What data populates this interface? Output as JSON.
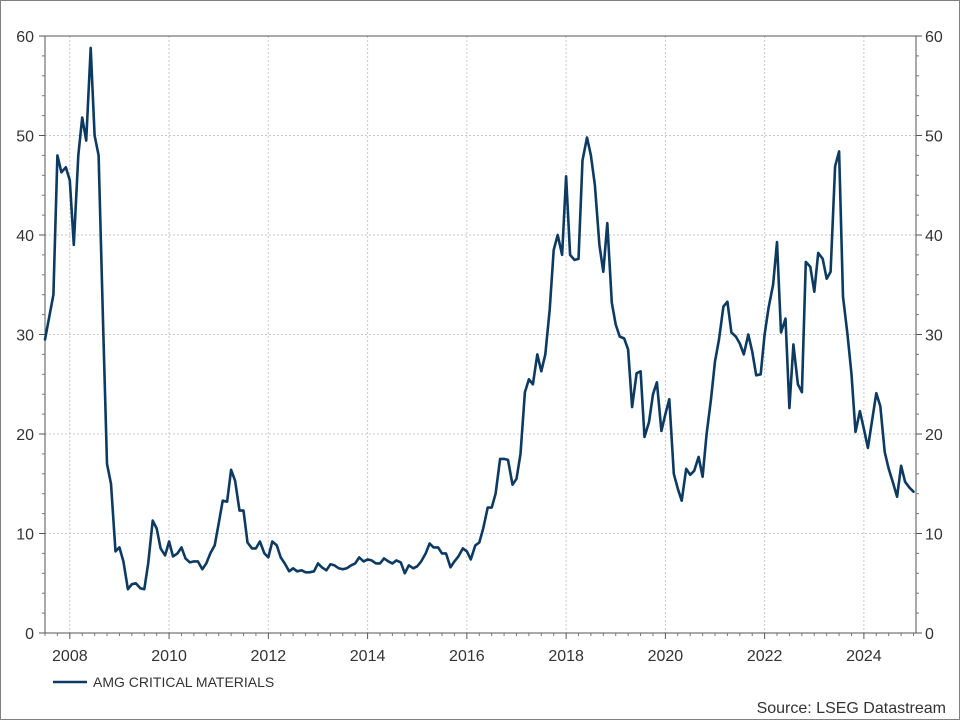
{
  "chart_data": {
    "type": "line",
    "title": "",
    "xlabel": "",
    "ylabel": "",
    "xlim": [
      2007.5,
      2025.05
    ],
    "ylim": [
      0,
      60
    ],
    "y_ticks": [
      0,
      10,
      20,
      30,
      40,
      50,
      60
    ],
    "x_ticks": [
      2008,
      2010,
      2012,
      2014,
      2016,
      2018,
      2020,
      2022,
      2024
    ],
    "grid": true,
    "y_axis_both_sides": true,
    "legend_position": "bottom-left",
    "source": "Source: LSEG Datastream",
    "series": [
      {
        "name": "AMG CRITICAL MATERIALS",
        "color": "#0d3a63",
        "x": [
          2007.5,
          2007.67,
          2007.75,
          2007.83,
          2007.92,
          2008.0,
          2008.08,
          2008.17,
          2008.25,
          2008.33,
          2008.42,
          2008.5,
          2008.58,
          2008.67,
          2008.75,
          2008.83,
          2008.92,
          2009.0,
          2009.08,
          2009.17,
          2009.25,
          2009.33,
          2009.42,
          2009.5,
          2009.58,
          2009.67,
          2009.75,
          2009.83,
          2009.92,
          2010.0,
          2010.08,
          2010.17,
          2010.25,
          2010.33,
          2010.42,
          2010.5,
          2010.58,
          2010.67,
          2010.75,
          2010.83,
          2010.92,
          2011.0,
          2011.08,
          2011.17,
          2011.25,
          2011.33,
          2011.42,
          2011.5,
          2011.58,
          2011.67,
          2011.75,
          2011.83,
          2011.92,
          2012.0,
          2012.08,
          2012.17,
          2012.25,
          2012.33,
          2012.42,
          2012.5,
          2012.58,
          2012.67,
          2012.75,
          2012.83,
          2012.92,
          2013.0,
          2013.08,
          2013.17,
          2013.25,
          2013.33,
          2013.42,
          2013.5,
          2013.58,
          2013.67,
          2013.75,
          2013.83,
          2013.92,
          2014.0,
          2014.08,
          2014.17,
          2014.25,
          2014.33,
          2014.42,
          2014.5,
          2014.58,
          2014.67,
          2014.75,
          2014.83,
          2014.92,
          2015.0,
          2015.08,
          2015.17,
          2015.25,
          2015.33,
          2015.42,
          2015.5,
          2015.58,
          2015.67,
          2015.75,
          2015.83,
          2015.92,
          2016.0,
          2016.08,
          2016.17,
          2016.25,
          2016.33,
          2016.42,
          2016.5,
          2016.58,
          2016.67,
          2016.75,
          2016.83,
          2016.92,
          2017.0,
          2017.08,
          2017.17,
          2017.25,
          2017.33,
          2017.42,
          2017.5,
          2017.58,
          2017.67,
          2017.75,
          2017.83,
          2017.92,
          2018.0,
          2018.08,
          2018.17,
          2018.25,
          2018.33,
          2018.42,
          2018.5,
          2018.58,
          2018.67,
          2018.75,
          2018.83,
          2018.92,
          2019.0,
          2019.08,
          2019.17,
          2019.25,
          2019.33,
          2019.42,
          2019.5,
          2019.58,
          2019.67,
          2019.75,
          2019.83,
          2019.92,
          2020.0,
          2020.08,
          2020.17,
          2020.25,
          2020.33,
          2020.42,
          2020.5,
          2020.58,
          2020.67,
          2020.75,
          2020.83,
          2020.92,
          2021.0,
          2021.08,
          2021.17,
          2021.25,
          2021.33,
          2021.42,
          2021.5,
          2021.58,
          2021.67,
          2021.75,
          2021.83,
          2021.92,
          2022.0,
          2022.08,
          2022.17,
          2022.25,
          2022.33,
          2022.42,
          2022.5,
          2022.58,
          2022.67,
          2022.75,
          2022.83,
          2022.92,
          2023.0,
          2023.08,
          2023.17,
          2023.25,
          2023.33,
          2023.42,
          2023.5,
          2023.58,
          2023.67,
          2023.75,
          2023.83,
          2023.92,
          2024.0,
          2024.08,
          2024.17,
          2024.25,
          2024.33,
          2024.42,
          2024.5,
          2024.58,
          2024.67,
          2024.75,
          2024.83,
          2024.92,
          2025.0
        ],
        "values": [
          29.5,
          34.0,
          48.0,
          46.3,
          46.8,
          45.5,
          39.0,
          48.0,
          51.8,
          49.5,
          58.8,
          50.0,
          48.0,
          31.0,
          17.0,
          15.0,
          8.2,
          8.6,
          7.2,
          4.4,
          4.9,
          5.0,
          4.5,
          4.4,
          7.0,
          11.3,
          10.5,
          8.5,
          7.8,
          9.2,
          7.7,
          8.0,
          8.6,
          7.5,
          7.1,
          7.2,
          7.2,
          6.4,
          7.0,
          8.0,
          8.8,
          11.0,
          13.3,
          13.2,
          16.4,
          15.3,
          12.3,
          12.3,
          9.1,
          8.5,
          8.5,
          9.2,
          8.0,
          7.6,
          9.2,
          8.8,
          7.6,
          7.0,
          6.2,
          6.5,
          6.2,
          6.3,
          6.1,
          6.1,
          6.2,
          7.0,
          6.6,
          6.3,
          6.9,
          6.8,
          6.5,
          6.4,
          6.5,
          6.8,
          7.0,
          7.6,
          7.2,
          7.4,
          7.3,
          7.0,
          7.0,
          7.5,
          7.2,
          7.0,
          7.3,
          7.1,
          6.0,
          6.8,
          6.5,
          6.7,
          7.2,
          8.0,
          9.0,
          8.6,
          8.6,
          8.0,
          8.0,
          6.6,
          7.2,
          7.7,
          8.5,
          8.2,
          7.4,
          8.8,
          9.1,
          10.5,
          12.6,
          12.6,
          14.0,
          17.5,
          17.5,
          17.4,
          14.9,
          15.5,
          18.0,
          24.2,
          25.5,
          25.0,
          28.0,
          26.3,
          28.0,
          32.5,
          38.5,
          40.0,
          38.0,
          45.9,
          38.0,
          37.5,
          37.6,
          47.5,
          49.8,
          48.0,
          45.0,
          39.0,
          36.3,
          41.2,
          33.2,
          31.0,
          29.8,
          29.6,
          28.5,
          22.7,
          26.1,
          26.3,
          19.7,
          21.2,
          24.0,
          25.2,
          20.3,
          22.0,
          23.5,
          16.0,
          14.5,
          13.3,
          16.5,
          15.9,
          16.3,
          17.7,
          15.7,
          20.0,
          23.5,
          27.3,
          29.5,
          32.8,
          33.3,
          30.2,
          29.8,
          29.1,
          28.0,
          30.0,
          28.3,
          25.9,
          26.0,
          30.0,
          32.7,
          35.0,
          39.3,
          30.2,
          31.6,
          22.6,
          29.0,
          25.0,
          24.2,
          37.3,
          36.8,
          34.3,
          38.2,
          37.6,
          35.6,
          36.3,
          46.9,
          48.4,
          33.8,
          30.0,
          26.0,
          20.2,
          22.3,
          20.5,
          18.6,
          21.5,
          24.1,
          22.8,
          18.2,
          16.5,
          15.2,
          13.7,
          16.8,
          15.2,
          14.6,
          14.2
        ]
      }
    ]
  }
}
